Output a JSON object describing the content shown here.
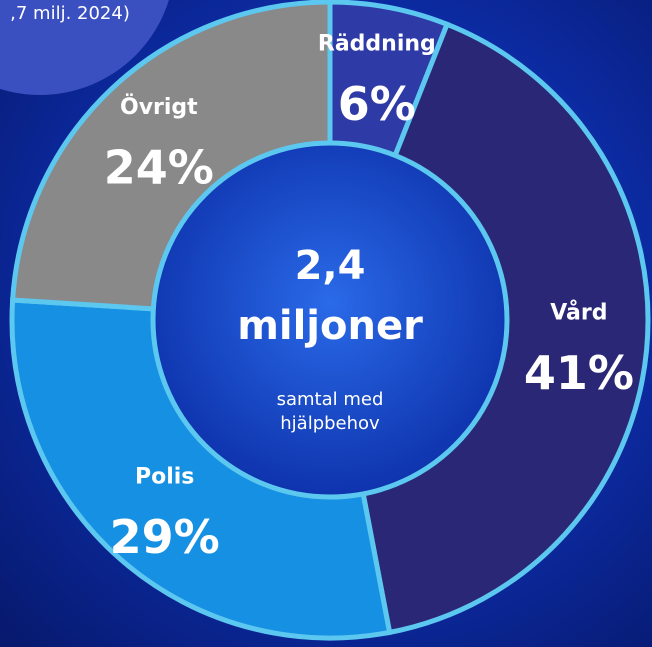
{
  "chart_data": {
    "type": "donut",
    "annotation": ",7 milj. 2024)",
    "center_title": [
      "2,4",
      "miljoner"
    ],
    "center_subtitle": [
      "samtal med",
      "hjälpbehov"
    ],
    "categories": [
      "Räddning",
      "Vård",
      "Polis",
      "Övrigt"
    ],
    "values": [
      6,
      41,
      29,
      24
    ],
    "value_labels": [
      "6%",
      "41%",
      "29%",
      "24%"
    ],
    "colors": [
      "#2e3aa6",
      "#2a2876",
      "#1690e2",
      "#898989"
    ]
  }
}
